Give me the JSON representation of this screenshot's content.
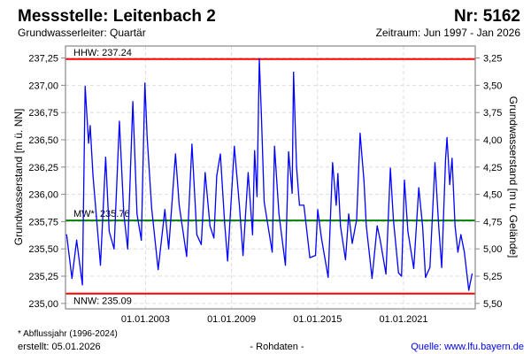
{
  "header": {
    "title": "Messstelle: Leitenbach 2",
    "number": "Nr: 5162",
    "aquifer": "Grundwasserleiter: Quartär",
    "period": "Zeitraum: Jun 1997 - Jan 2026"
  },
  "footer": {
    "note": "* Abflussjahr (1996-2024)",
    "created": "erstellt:  05.01.2026",
    "rawdata": "- Rohdaten -",
    "source": "Quelle: www.lfu.bayern.de"
  },
  "colors": {
    "series": "#0000ff",
    "extreme": "#ff0000",
    "mean": "#008000",
    "source": "#0000ff"
  },
  "chart_data": {
    "type": "line",
    "ylabel": "Grundwasserstand [m ü. NN]",
    "ylabel_right": "Grundwasserstand [m u. Gelände]",
    "xlim": [
      1997.42,
      2026.0
    ],
    "ylim": [
      234.95,
      237.36
    ],
    "grid": true,
    "yticks": [
      235.0,
      235.25,
      235.5,
      235.75,
      236.0,
      236.25,
      236.5,
      236.75,
      237.0,
      237.25
    ],
    "ytick_labels": [
      "235,00",
      "235,25",
      "235,50",
      "235,75",
      "236,00",
      "236,25",
      "236,50",
      "236,75",
      "237,00",
      "237,25"
    ],
    "ytick_labels_right": [
      "5,50",
      "5,25",
      "5,00",
      "4,75",
      "4,50",
      "4,25",
      "4,00",
      "3,75",
      "3,50",
      "3,25"
    ],
    "xticks": [
      2003,
      2009,
      2015,
      2021
    ],
    "xtick_labels": [
      "01.01.2003",
      "01.01.2009",
      "01.01.2015",
      "01.01.2021"
    ],
    "reference_lines": [
      {
        "label": "HHW: 237.24",
        "value": 237.24,
        "kind": "extreme"
      },
      {
        "label": "MW*: 235.76",
        "value": 235.76,
        "kind": "mean"
      },
      {
        "label": "NNW: 235.09",
        "value": 235.09,
        "kind": "extreme"
      }
    ],
    "series": [
      {
        "name": "Grundwasserstand",
        "x": [
          1997.5,
          1997.87,
          1998.2,
          1998.6,
          1998.79,
          1999.03,
          1999.14,
          1999.34,
          1999.86,
          2000.22,
          2000.47,
          2000.81,
          2001.18,
          2001.49,
          2001.76,
          2002.12,
          2002.41,
          2002.71,
          2002.96,
          2003.12,
          2003.43,
          2003.88,
          2004.35,
          2004.62,
          2005.09,
          2005.35,
          2005.87,
          2006.24,
          2006.58,
          2006.89,
          2007.16,
          2007.5,
          2007.77,
          2007.97,
          2008.22,
          2008.52,
          2008.73,
          2009.2,
          2009.55,
          2009.8,
          2010.16,
          2010.47,
          2010.61,
          2010.78,
          2010.94,
          2011.08,
          2011.28,
          2011.84,
          2012.0,
          2012.31,
          2012.76,
          2012.98,
          2013.23,
          2013.33,
          2013.54,
          2013.74,
          2014.05,
          2014.46,
          2014.86,
          2015.01,
          2015.27,
          2015.74,
          2016.05,
          2016.3,
          2016.42,
          2016.6,
          2016.95,
          2017.17,
          2017.42,
          2017.73,
          2017.97,
          2018.24,
          2018.4,
          2018.8,
          2019.16,
          2019.37,
          2019.77,
          2020.08,
          2020.29,
          2020.65,
          2020.86,
          2021.06,
          2021.3,
          2021.71,
          2022.06,
          2022.33,
          2022.53,
          2022.84,
          2023.19,
          2023.45,
          2023.66,
          2023.93,
          2024.03,
          2024.22,
          2024.38,
          2024.59,
          2024.79,
          2025.0,
          2025.24,
          2025.55,
          2025.78
        ],
        "y": [
          235.63,
          235.23,
          235.58,
          235.17,
          236.99,
          236.47,
          236.63,
          236.17,
          235.35,
          236.34,
          235.66,
          235.5,
          236.67,
          235.82,
          235.5,
          236.85,
          235.82,
          235.58,
          237.02,
          236.52,
          235.87,
          235.31,
          235.86,
          235.5,
          236.37,
          235.9,
          235.43,
          236.46,
          235.63,
          235.54,
          236.2,
          235.71,
          235.6,
          236.17,
          236.37,
          235.74,
          235.39,
          236.44,
          235.9,
          235.44,
          236.2,
          235.63,
          236.4,
          235.98,
          237.24,
          236.74,
          235.93,
          235.47,
          236.44,
          235.82,
          235.35,
          236.39,
          236.01,
          237.12,
          236.25,
          235.9,
          235.9,
          235.42,
          235.44,
          235.86,
          235.6,
          235.24,
          236.29,
          235.9,
          236.19,
          235.71,
          235.4,
          235.82,
          235.55,
          235.77,
          236.56,
          236.12,
          235.71,
          235.23,
          235.71,
          235.58,
          235.27,
          236.24,
          235.77,
          235.28,
          235.25,
          236.13,
          235.66,
          235.32,
          236.06,
          235.71,
          235.24,
          235.33,
          236.29,
          235.71,
          235.33,
          236.33,
          236.52,
          236.09,
          236.33,
          235.71,
          235.47,
          235.63,
          235.47,
          235.12,
          235.27
        ]
      }
    ]
  }
}
